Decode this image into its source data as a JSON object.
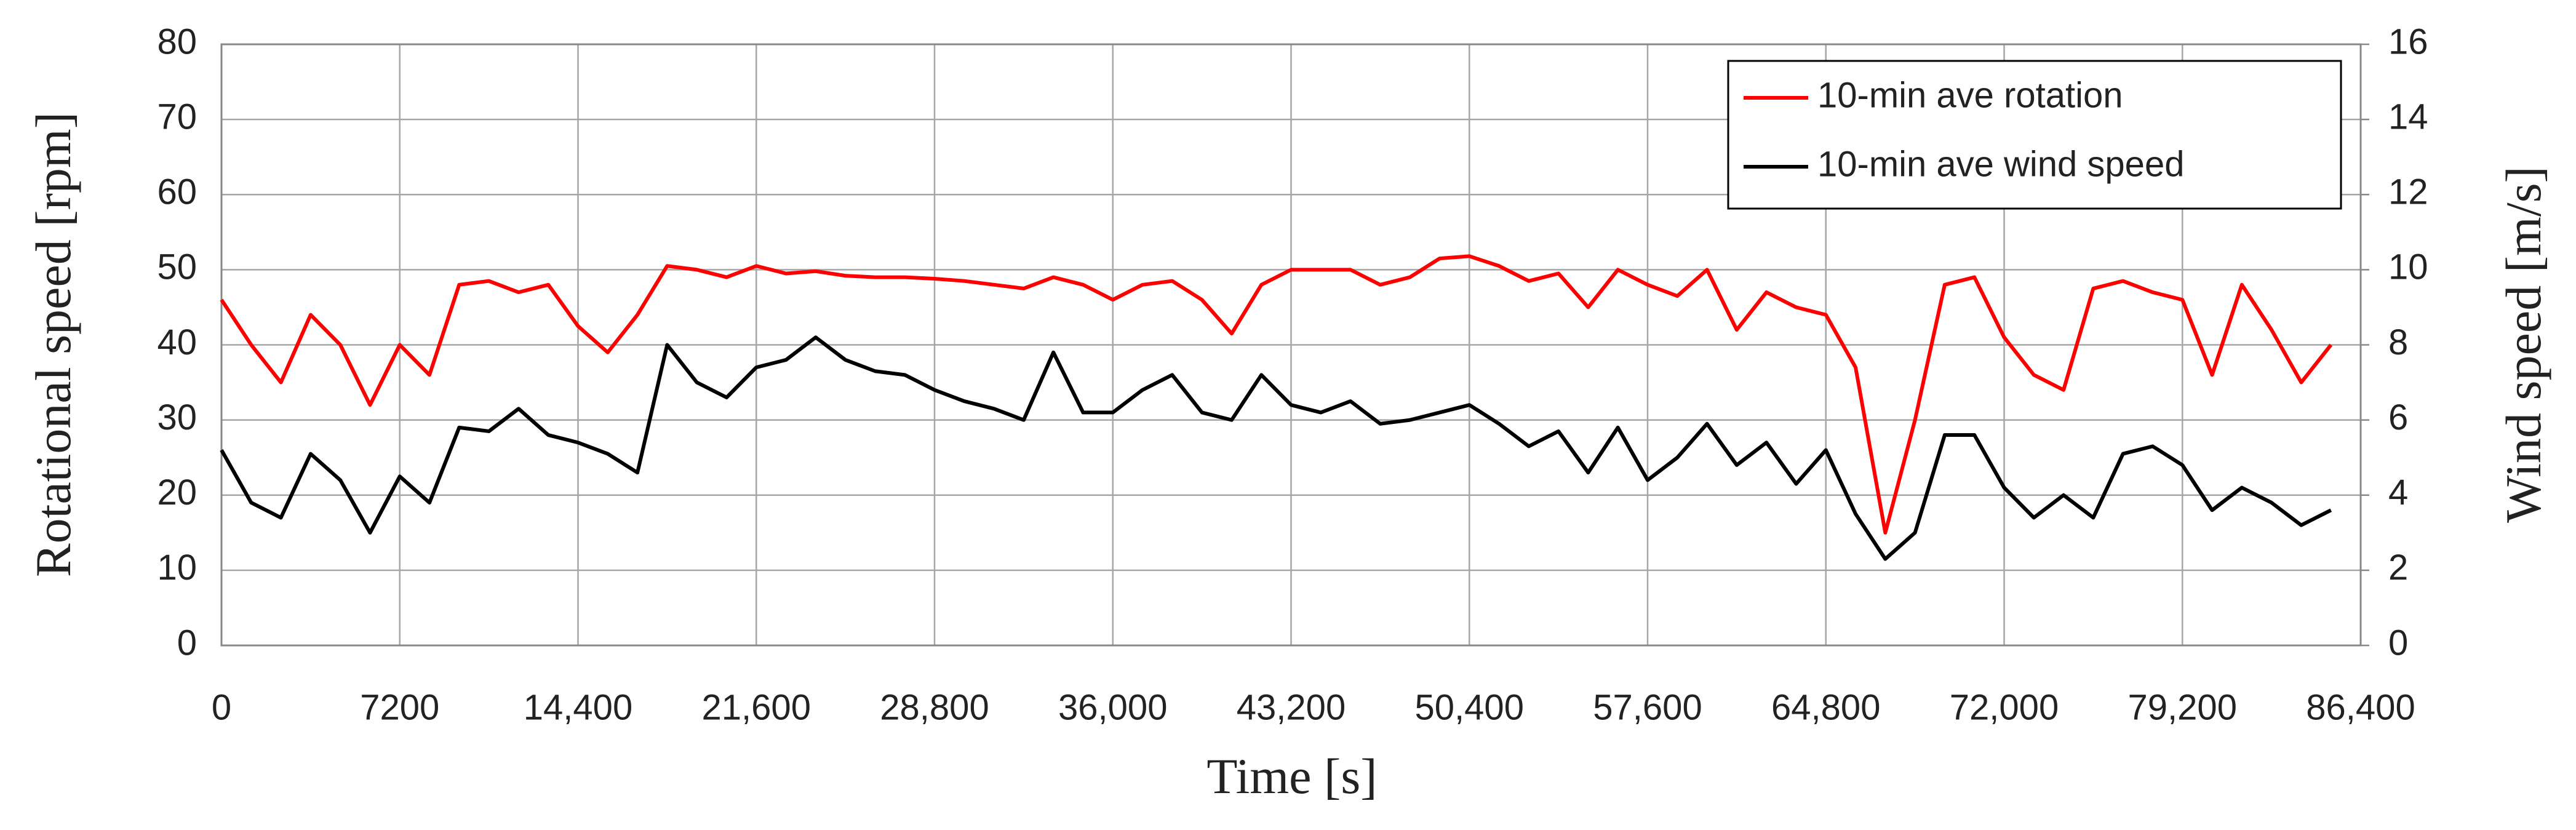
{
  "chart_data": {
    "type": "line",
    "xlabel": "Time  [s]",
    "ylabel": "Rotational speed  [rpm]",
    "y2label": "Wind speed  [m/s]",
    "x": [
      0,
      1200,
      2400,
      3600,
      4800,
      6000,
      7200,
      8400,
      9600,
      10800,
      12000,
      13200,
      14400,
      15600,
      16800,
      18000,
      19200,
      20400,
      21600,
      22800,
      24000,
      25200,
      26400,
      27600,
      28800,
      30000,
      31200,
      32400,
      33600,
      34800,
      36000,
      37200,
      38400,
      39600,
      40800,
      42000,
      43200,
      44400,
      45600,
      46800,
      48000,
      49200,
      50400,
      51600,
      52800,
      54000,
      55200,
      56400,
      57600,
      58800,
      60000,
      61200,
      62400,
      63600,
      64800,
      66000,
      67200,
      68400,
      69600,
      70800,
      72000,
      73200,
      74400,
      75600,
      76800,
      78000,
      79200,
      80400,
      81600,
      82800,
      84000,
      85200
    ],
    "series": [
      {
        "name": "10-min ave rotation",
        "color": "#ff0000",
        "values": [
          46,
          40,
          35,
          44,
          40,
          32,
          40,
          36,
          48,
          48.5,
          47,
          48,
          42.5,
          39,
          44,
          50.5,
          50,
          49,
          50.5,
          49.5,
          49.8,
          49.2,
          49,
          49,
          48.8,
          48.5,
          48,
          47.5,
          49,
          48,
          46,
          48,
          48.5,
          46,
          41.5,
          48,
          50,
          50,
          50,
          48,
          49,
          51.5,
          51.8,
          50.5,
          48.5,
          49.5,
          45,
          50,
          48,
          46.5,
          50,
          42,
          47,
          45,
          44,
          37,
          15,
          30,
          48,
          49,
          41,
          36,
          34,
          47.5,
          48.5,
          47,
          46,
          36,
          48,
          42,
          35,
          40
        ]
      },
      {
        "name": "10-min ave wind speed",
        "color": "#000000",
        "axis": "y2",
        "values": [
          5.2,
          3.8,
          3.4,
          5.1,
          4.4,
          3.0,
          4.5,
          3.8,
          5.8,
          5.7,
          6.3,
          5.6,
          5.4,
          5.1,
          4.6,
          8.0,
          7.0,
          6.6,
          7.4,
          7.6,
          8.2,
          7.6,
          7.3,
          7.2,
          6.8,
          6.5,
          6.3,
          6.0,
          7.8,
          6.2,
          6.2,
          6.8,
          7.2,
          6.2,
          6.0,
          7.2,
          6.4,
          6.2,
          6.5,
          5.9,
          6.0,
          6.2,
          6.4,
          5.9,
          5.3,
          5.7,
          4.6,
          5.8,
          4.4,
          5.0,
          5.9,
          4.8,
          5.4,
          4.3,
          5.2,
          3.5,
          2.3,
          3.0,
          5.6,
          5.6,
          4.2,
          3.4,
          4.0,
          3.4,
          5.1,
          5.3,
          4.8,
          3.6,
          4.2,
          3.8,
          3.2,
          3.6
        ]
      }
    ],
    "xlim": [
      0,
      86400
    ],
    "xticks": [
      0,
      7200,
      {
        "value": 14400,
        "label": "14,400"
      },
      {
        "value": 21600,
        "label": "21,600"
      },
      {
        "value": 28800,
        "label": "28,800"
      },
      {
        "value": 36000,
        "label": "36,000"
      },
      {
        "value": 43200,
        "label": "43,200"
      },
      {
        "value": 50400,
        "label": "50,400"
      },
      {
        "value": 57600,
        "label": "57,600"
      },
      {
        "value": 64800,
        "label": "64,800"
      },
      {
        "value": 72000,
        "label": "72,000"
      },
      {
        "value": 79200,
        "label": "79,200"
      },
      {
        "value": 86400,
        "label": "86,400"
      }
    ],
    "ylim": [
      0,
      80
    ],
    "yticks": [
      0,
      10,
      20,
      30,
      40,
      50,
      60,
      70,
      80
    ],
    "y2lim": [
      0,
      16
    ],
    "y2ticks": [
      0,
      2,
      4,
      6,
      8,
      10,
      12,
      14,
      16
    ],
    "grid": true,
    "legend": "upper right"
  }
}
